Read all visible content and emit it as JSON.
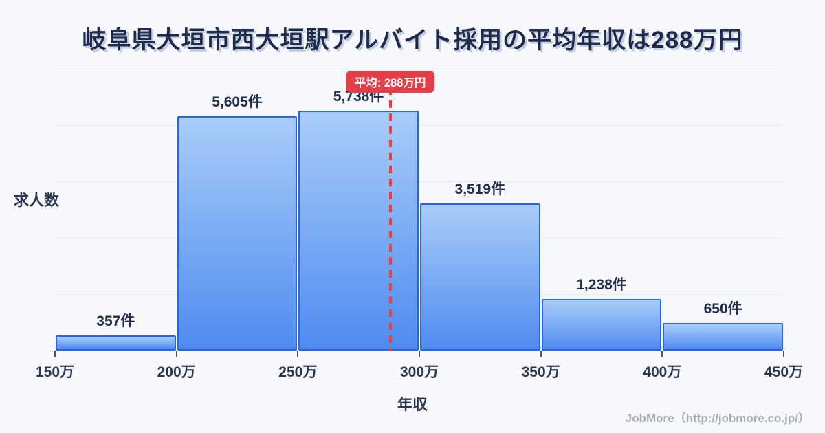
{
  "title": {
    "text": "岐阜県大垣市西大垣駅アルバイト採用の平均年収は288万円",
    "color": "#1f2b4d"
  },
  "chart_data": {
    "type": "bar",
    "title": "岐阜県大垣市西大垣駅アルバイト採用の平均年収は288万円",
    "xlabel": "年収",
    "ylabel": "求人数",
    "bin_edges": [
      150,
      200,
      250,
      300,
      350,
      400,
      450
    ],
    "x_tick_labels": [
      "150万",
      "200万",
      "250万",
      "300万",
      "350万",
      "400万",
      "450万"
    ],
    "values": [
      357,
      5605,
      5738,
      3519,
      1238,
      650
    ],
    "bar_labels": [
      "357件",
      "5,605件",
      "5,738件",
      "3,519件",
      "1,238件",
      "650件"
    ],
    "xlim": [
      150,
      450
    ],
    "ylim": [
      0,
      6740
    ],
    "grid": true,
    "gridline_count": 5,
    "legend": "none",
    "average_line": {
      "value": 288,
      "badge_label": "平均: 288万円"
    },
    "colors": {
      "bar_fill_top": "#a9cdf9",
      "bar_fill_bottom": "#4f8bf0",
      "bar_border": "#2566e3",
      "average_line": "#e8403f",
      "badge_background": "#e63e48",
      "badge_text": "#ffffff",
      "label_text": "#222e4d",
      "gridline": "#e5e9f1",
      "background": "#f7f8fb"
    }
  },
  "footer": {
    "credit": "JobMore（http://jobmore.co.jp/）"
  }
}
